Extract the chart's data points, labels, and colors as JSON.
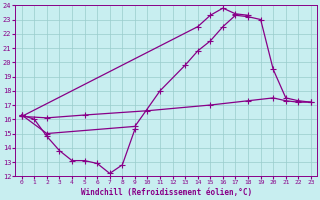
{
  "xlabel": "Windchill (Refroidissement éolien,°C)",
  "bg_color": "#c8eef0",
  "grid_color": "#99cccc",
  "line_color": "#880088",
  "xlim": [
    -0.5,
    23.5
  ],
  "ylim": [
    12,
    24
  ],
  "xticks": [
    0,
    1,
    2,
    3,
    4,
    5,
    6,
    7,
    8,
    9,
    10,
    11,
    12,
    13,
    14,
    15,
    16,
    17,
    18,
    19,
    20,
    21,
    22,
    23
  ],
  "yticks": [
    12,
    13,
    14,
    15,
    16,
    17,
    18,
    19,
    20,
    21,
    22,
    23,
    24
  ],
  "line1_x": [
    0,
    1,
    2,
    3,
    4,
    5,
    6,
    7,
    8,
    9
  ],
  "line1_y": [
    16.3,
    16.0,
    14.8,
    13.8,
    13.1,
    13.1,
    12.9,
    12.2,
    12.8,
    15.3
  ],
  "line2_x": [
    0,
    2,
    9,
    11,
    13,
    14,
    15,
    16,
    17,
    18,
    19,
    20,
    21,
    22,
    23
  ],
  "line2_y": [
    16.3,
    15.0,
    15.5,
    18.0,
    19.8,
    20.8,
    21.5,
    22.5,
    23.3,
    23.2,
    23.0,
    19.5,
    17.5,
    17.3,
    17.2
  ],
  "line3_x": [
    0,
    14,
    15,
    16,
    17,
    18
  ],
  "line3_y": [
    16.2,
    22.5,
    23.3,
    23.8,
    23.4,
    23.3
  ],
  "line4_x": [
    0,
    2,
    5,
    10,
    15,
    18,
    20,
    21,
    22,
    23
  ],
  "line4_y": [
    16.2,
    16.1,
    16.3,
    16.6,
    17.0,
    17.3,
    17.5,
    17.3,
    17.2,
    17.2
  ]
}
